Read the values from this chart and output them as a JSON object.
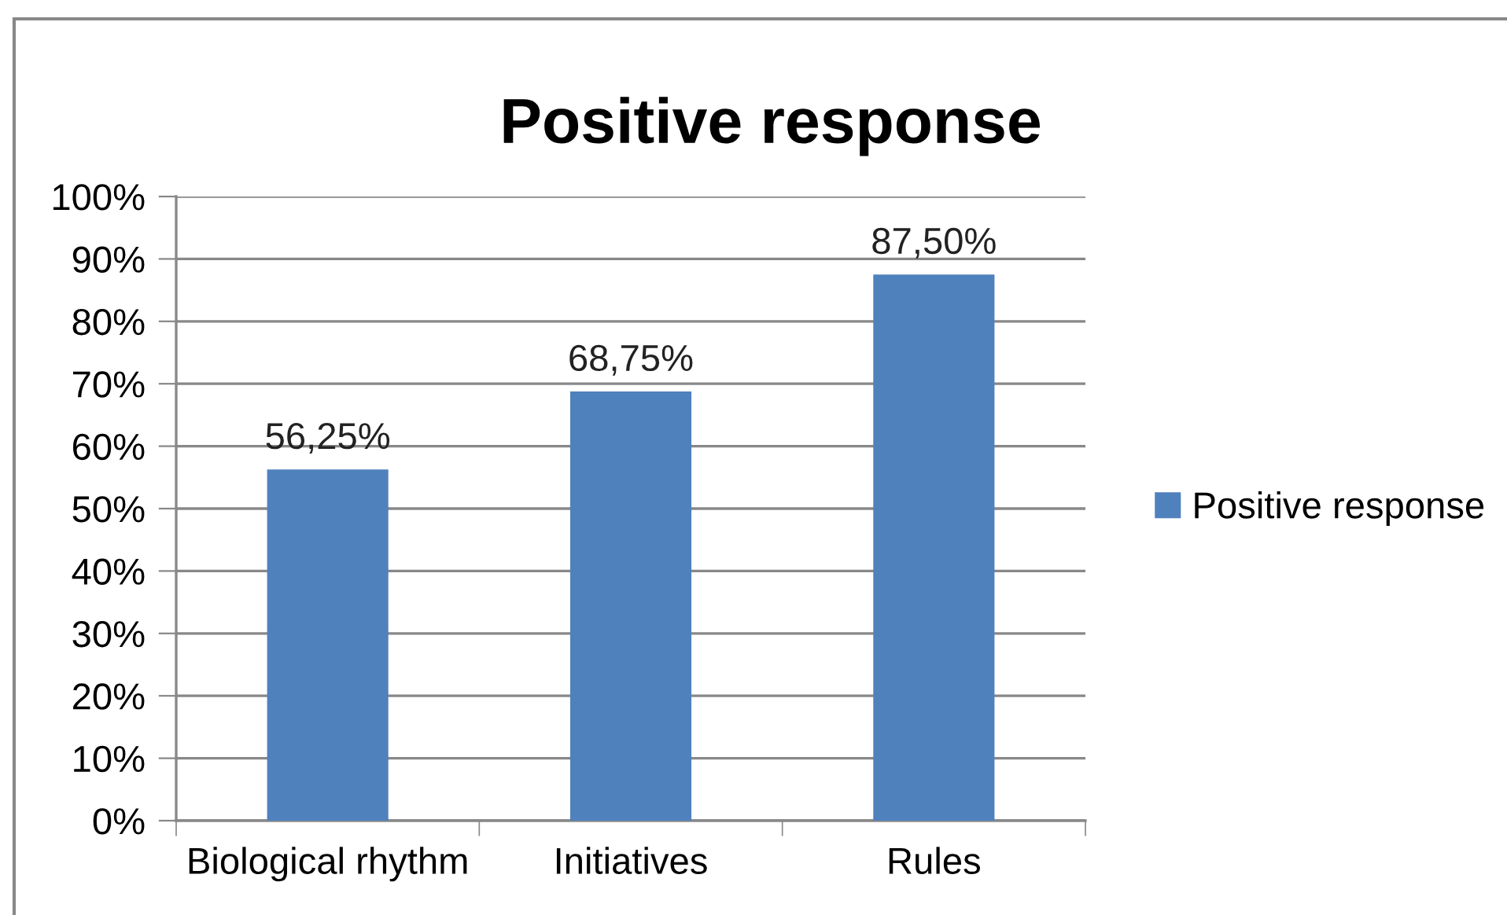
{
  "chart_data": {
    "type": "bar",
    "title": "Positive response",
    "categories": [
      "Biological rhythm",
      "Initiatives",
      "Rules"
    ],
    "series": [
      {
        "name": "Positive response",
        "color": "#4f81bd",
        "values": [
          56.25,
          68.75,
          87.5
        ],
        "value_labels": [
          "56,25%",
          "68,75%",
          "87,50%"
        ]
      }
    ],
    "ylim": [
      0,
      100
    ],
    "yticks": [
      {
        "value": 0,
        "label": "0%"
      },
      {
        "value": 10,
        "label": "10%"
      },
      {
        "value": 20,
        "label": "20%"
      },
      {
        "value": 30,
        "label": "30%"
      },
      {
        "value": 40,
        "label": "40%"
      },
      {
        "value": 50,
        "label": "50%"
      },
      {
        "value": 60,
        "label": "60%"
      },
      {
        "value": 70,
        "label": "70%"
      },
      {
        "value": 80,
        "label": "80%"
      },
      {
        "value": 90,
        "label": "90%"
      },
      {
        "value": 100,
        "label": "100%"
      }
    ],
    "grid": "y",
    "legend": "right"
  }
}
